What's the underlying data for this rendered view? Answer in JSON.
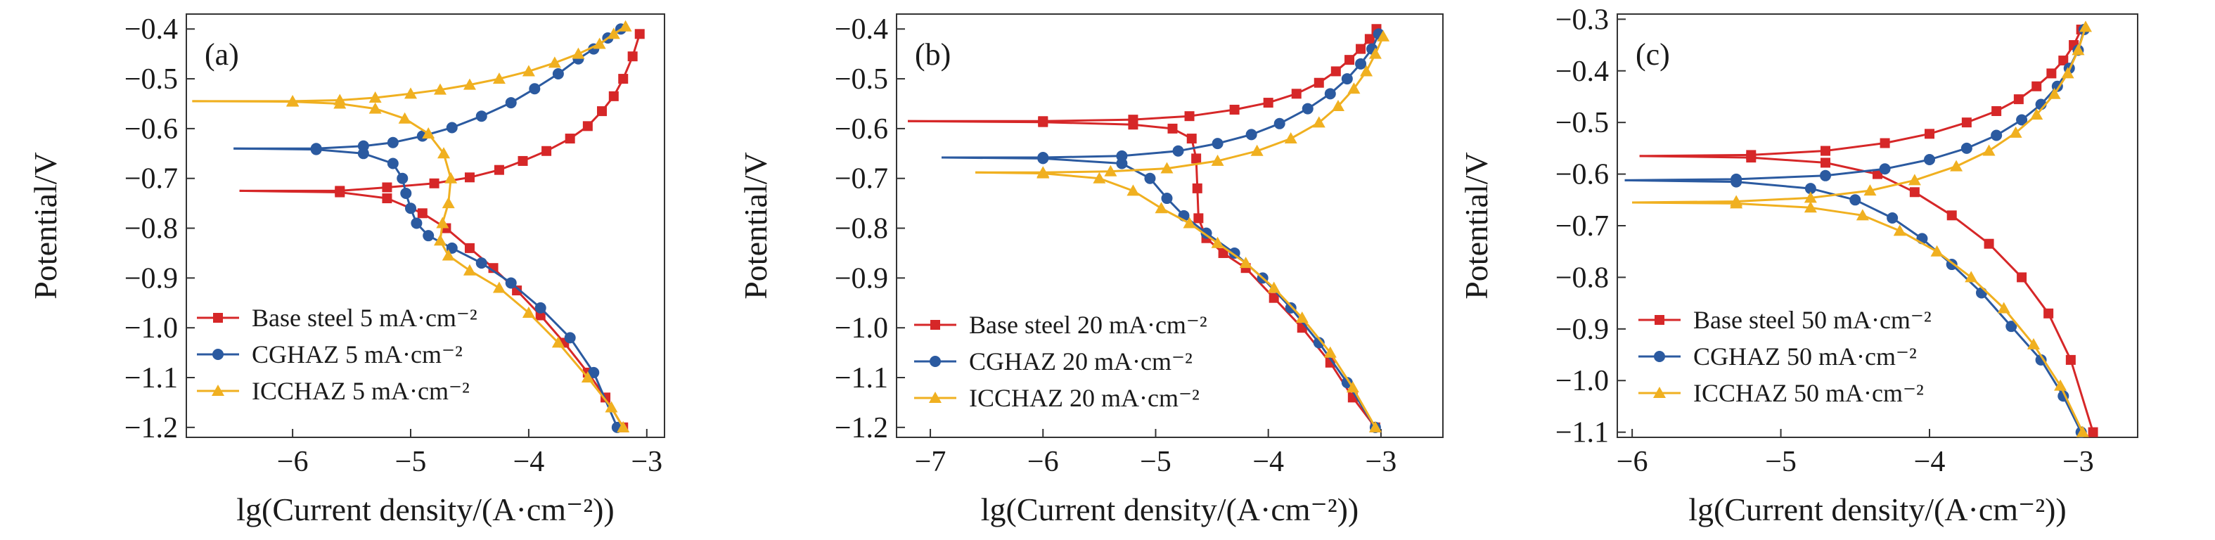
{
  "figure": {
    "panels": [
      {
        "tag": "(a)",
        "xlabel": "lg(Current density/(A·cm⁻²))",
        "ylabel": "Potential/V",
        "legend_placement": "lower-left",
        "xlim": [
          -6.9,
          -2.85
        ],
        "ylim": [
          -1.22,
          -0.37
        ],
        "xticks": [
          -6,
          -5,
          -4,
          -3
        ],
        "yticks": [
          -1.2,
          -1.1,
          -1.0,
          -0.9,
          -0.8,
          -0.7,
          -0.6,
          -0.5,
          -0.4
        ]
      },
      {
        "tag": "(b)",
        "xlabel": "lg(Current density/(A·cm⁻²))",
        "ylabel": "Potential/V",
        "legend_placement": "lower-left",
        "xlim": [
          -7.3,
          -2.45
        ],
        "ylim": [
          -1.22,
          -0.37
        ],
        "xticks": [
          -7,
          -6,
          -5,
          -4,
          -3
        ],
        "yticks": [
          -1.2,
          -1.1,
          -1.0,
          -0.9,
          -0.8,
          -0.7,
          -0.6,
          -0.5,
          -0.4
        ]
      },
      {
        "tag": "(c)",
        "xlabel": "lg(Current density/(A·cm⁻²))",
        "ylabel": "Potential/V",
        "legend_placement": "lower-left",
        "xlim": [
          -6.1,
          -2.6
        ],
        "ylim": [
          -1.11,
          -0.29
        ],
        "xticks": [
          -6,
          -5,
          -4,
          -3
        ],
        "yticks": [
          -1.1,
          -1.0,
          -0.9,
          -0.8,
          -0.7,
          -0.6,
          -0.5,
          -0.4,
          -0.3
        ]
      }
    ]
  },
  "chart_data": [
    {
      "type": "line",
      "panel": "(a)",
      "xlabel": "lg(Current density/(A·cm⁻²))",
      "ylabel": "Potential/V",
      "xlim": [
        -6.9,
        -2.85
      ],
      "ylim": [
        -1.22,
        -0.37
      ],
      "grid": false,
      "legend": "lower-left",
      "series": [
        {
          "name": "Base steel 5 mA·cm⁻²",
          "color": "#d62728",
          "marker": "square",
          "anodic": {
            "x": [
              -6.45,
              -5.6,
              -5.2,
              -4.8,
              -4.5,
              -4.25,
              -4.05,
              -3.85,
              -3.65,
              -3.5,
              -3.38,
              -3.28,
              -3.2,
              -3.12,
              -3.06
            ],
            "y": [
              -0.725,
              -0.725,
              -0.718,
              -0.71,
              -0.698,
              -0.683,
              -0.665,
              -0.645,
              -0.62,
              -0.595,
              -0.565,
              -0.535,
              -0.5,
              -0.455,
              -0.41
            ]
          },
          "cathodic": {
            "x": [
              -6.45,
              -5.6,
              -5.2,
              -4.9,
              -4.7,
              -4.5,
              -4.3,
              -4.1,
              -3.9,
              -3.7,
              -3.5,
              -3.35,
              -3.2
            ],
            "y": [
              -0.725,
              -0.728,
              -0.74,
              -0.77,
              -0.8,
              -0.84,
              -0.88,
              -0.925,
              -0.975,
              -1.03,
              -1.09,
              -1.14,
              -1.2
            ]
          }
        },
        {
          "name": "CGHAZ 5 mA·cm⁻²",
          "color": "#2b5aa0",
          "marker": "circle",
          "anodic": {
            "x": [
              -6.5,
              -5.8,
              -5.4,
              -5.15,
              -4.9,
              -4.65,
              -4.4,
              -4.15,
              -3.95,
              -3.75,
              -3.58,
              -3.45,
              -3.33,
              -3.22
            ],
            "y": [
              -0.64,
              -0.64,
              -0.635,
              -0.628,
              -0.615,
              -0.598,
              -0.575,
              -0.548,
              -0.52,
              -0.49,
              -0.46,
              -0.44,
              -0.418,
              -0.4
            ]
          },
          "cathodic": {
            "x": [
              -6.5,
              -5.8,
              -5.4,
              -5.15,
              -5.07,
              -5.04,
              -5.0,
              -4.95,
              -4.85,
              -4.65,
              -4.4,
              -4.15,
              -3.9,
              -3.65,
              -3.45,
              -3.25
            ],
            "y": [
              -0.64,
              -0.642,
              -0.65,
              -0.67,
              -0.7,
              -0.73,
              -0.76,
              -0.79,
              -0.815,
              -0.84,
              -0.87,
              -0.91,
              -0.96,
              -1.02,
              -1.09,
              -1.2
            ]
          }
        },
        {
          "name": "ICCHAZ 5 mA·cm⁻²",
          "color": "#f0b020",
          "marker": "triangle",
          "anodic": {
            "x": [
              -6.85,
              -6.0,
              -5.6,
              -5.3,
              -5.0,
              -4.75,
              -4.5,
              -4.25,
              -4.0,
              -3.78,
              -3.58,
              -3.4,
              -3.28,
              -3.18
            ],
            "y": [
              -0.545,
              -0.545,
              -0.543,
              -0.538,
              -0.53,
              -0.522,
              -0.512,
              -0.5,
              -0.485,
              -0.468,
              -0.45,
              -0.43,
              -0.41,
              -0.395
            ]
          },
          "cathodic": {
            "x": [
              -6.85,
              -6.0,
              -5.6,
              -5.3,
              -5.05,
              -4.85,
              -4.72,
              -4.66,
              -4.68,
              -4.73,
              -4.75,
              -4.68,
              -4.5,
              -4.25,
              -4.0,
              -3.75,
              -3.5,
              -3.3,
              -3.2
            ],
            "y": [
              -0.545,
              -0.546,
              -0.55,
              -0.56,
              -0.58,
              -0.61,
              -0.65,
              -0.7,
              -0.75,
              -0.79,
              -0.825,
              -0.855,
              -0.885,
              -0.92,
              -0.97,
              -1.03,
              -1.1,
              -1.16,
              -1.2
            ]
          }
        }
      ]
    },
    {
      "type": "line",
      "panel": "(b)",
      "xlabel": "lg(Current density/(A·cm⁻²))",
      "ylabel": "Potential/V",
      "xlim": [
        -7.3,
        -2.45
      ],
      "ylim": [
        -1.22,
        -0.37
      ],
      "grid": false,
      "legend": "lower-left",
      "series": [
        {
          "name": "Base steel 20 mA·cm⁻²",
          "color": "#d62728",
          "marker": "square",
          "anodic": {
            "x": [
              -7.2,
              -6.0,
              -5.2,
              -4.7,
              -4.3,
              -4.0,
              -3.75,
              -3.55,
              -3.4,
              -3.28,
              -3.18,
              -3.1,
              -3.04
            ],
            "y": [
              -0.585,
              -0.585,
              -0.582,
              -0.575,
              -0.562,
              -0.548,
              -0.53,
              -0.508,
              -0.485,
              -0.462,
              -0.44,
              -0.42,
              -0.4
            ]
          },
          "cathodic": {
            "x": [
              -7.2,
              -6.0,
              -5.2,
              -4.85,
              -4.68,
              -4.64,
              -4.63,
              -4.62,
              -4.55,
              -4.4,
              -4.2,
              -3.95,
              -3.7,
              -3.45,
              -3.25,
              -3.05
            ],
            "y": [
              -0.585,
              -0.587,
              -0.592,
              -0.6,
              -0.62,
              -0.66,
              -0.72,
              -0.78,
              -0.82,
              -0.85,
              -0.88,
              -0.94,
              -1.0,
              -1.07,
              -1.14,
              -1.2
            ]
          }
        },
        {
          "name": "CGHAZ 20 mA·cm⁻²",
          "color": "#2b5aa0",
          "marker": "circle",
          "anodic": {
            "x": [
              -6.9,
              -6.0,
              -5.3,
              -4.8,
              -4.45,
              -4.15,
              -3.9,
              -3.65,
              -3.45,
              -3.3,
              -3.18,
              -3.08,
              -3.02
            ],
            "y": [
              -0.658,
              -0.658,
              -0.655,
              -0.645,
              -0.63,
              -0.612,
              -0.59,
              -0.56,
              -0.53,
              -0.5,
              -0.47,
              -0.44,
              -0.41
            ]
          },
          "cathodic": {
            "x": [
              -6.9,
              -6.0,
              -5.3,
              -5.05,
              -4.9,
              -4.75,
              -4.55,
              -4.3,
              -4.05,
              -3.8,
              -3.55,
              -3.3,
              -3.05
            ],
            "y": [
              -0.658,
              -0.66,
              -0.67,
              -0.7,
              -0.74,
              -0.775,
              -0.81,
              -0.85,
              -0.9,
              -0.96,
              -1.03,
              -1.11,
              -1.2
            ]
          }
        },
        {
          "name": "ICCHAZ 20 mA·cm⁻²",
          "color": "#f0b020",
          "marker": "triangle",
          "anodic": {
            "x": [
              -6.6,
              -6.0,
              -5.4,
              -4.9,
              -4.45,
              -4.1,
              -3.8,
              -3.55,
              -3.38,
              -3.24,
              -3.13,
              -3.05,
              -2.98
            ],
            "y": [
              -0.688,
              -0.688,
              -0.686,
              -0.68,
              -0.665,
              -0.645,
              -0.62,
              -0.588,
              -0.555,
              -0.52,
              -0.485,
              -0.45,
              -0.415
            ]
          },
          "cathodic": {
            "x": [
              -6.6,
              -6.0,
              -5.5,
              -5.2,
              -4.95,
              -4.7,
              -4.45,
              -4.2,
              -3.95,
              -3.7,
              -3.45,
              -3.25,
              -3.05
            ],
            "y": [
              -0.688,
              -0.69,
              -0.7,
              -0.725,
              -0.76,
              -0.79,
              -0.83,
              -0.87,
              -0.92,
              -0.98,
              -1.05,
              -1.12,
              -1.2
            ]
          }
        }
      ]
    },
    {
      "type": "line",
      "panel": "(c)",
      "xlabel": "lg(Current density/(A·cm⁻²))",
      "ylabel": "Potential/V",
      "xlim": [
        -6.1,
        -2.6
      ],
      "ylim": [
        -1.11,
        -0.29
      ],
      "grid": false,
      "legend": "lower-left",
      "series": [
        {
          "name": "Base steel 50 mA·cm⁻²",
          "color": "#d62728",
          "marker": "square",
          "anodic": {
            "x": [
              -5.95,
              -5.2,
              -4.7,
              -4.3,
              -4.0,
              -3.75,
              -3.55,
              -3.4,
              -3.28,
              -3.18,
              -3.1,
              -3.03,
              -2.98
            ],
            "y": [
              -0.565,
              -0.563,
              -0.555,
              -0.54,
              -0.522,
              -0.5,
              -0.478,
              -0.455,
              -0.43,
              -0.405,
              -0.38,
              -0.35,
              -0.32
            ]
          },
          "cathodic": {
            "x": [
              -5.95,
              -5.2,
              -4.7,
              -4.35,
              -4.1,
              -3.85,
              -3.6,
              -3.38,
              -3.2,
              -3.05,
              -2.9
            ],
            "y": [
              -0.565,
              -0.568,
              -0.578,
              -0.6,
              -0.635,
              -0.68,
              -0.735,
              -0.8,
              -0.87,
              -0.96,
              -1.1
            ]
          }
        },
        {
          "name": "CGHAZ 50 mA·cm⁻²",
          "color": "#2b5aa0",
          "marker": "circle",
          "anodic": {
            "x": [
              -6.05,
              -5.3,
              -4.7,
              -4.3,
              -4.0,
              -3.75,
              -3.55,
              -3.38,
              -3.25,
              -3.14,
              -3.06,
              -3.0,
              -2.96
            ],
            "y": [
              -0.612,
              -0.61,
              -0.603,
              -0.59,
              -0.572,
              -0.55,
              -0.525,
              -0.495,
              -0.465,
              -0.43,
              -0.395,
              -0.36,
              -0.32
            ]
          },
          "cathodic": {
            "x": [
              -6.05,
              -5.3,
              -4.8,
              -4.5,
              -4.25,
              -4.05,
              -3.85,
              -3.65,
              -3.45,
              -3.25,
              -3.1,
              -2.98
            ],
            "y": [
              -0.612,
              -0.615,
              -0.628,
              -0.65,
              -0.685,
              -0.725,
              -0.775,
              -0.83,
              -0.895,
              -0.96,
              -1.03,
              -1.1
            ]
          }
        },
        {
          "name": "ICCHAZ 50 mA·cm⁻²",
          "color": "#f0b020",
          "marker": "triangle",
          "anodic": {
            "x": [
              -6.0,
              -5.3,
              -4.8,
              -4.4,
              -4.1,
              -3.82,
              -3.6,
              -3.42,
              -3.28,
              -3.16,
              -3.07,
              -3.0,
              -2.95
            ],
            "y": [
              -0.655,
              -0.653,
              -0.646,
              -0.632,
              -0.612,
              -0.585,
              -0.555,
              -0.52,
              -0.485,
              -0.445,
              -0.405,
              -0.36,
              -0.315
            ]
          },
          "cathodic": {
            "x": [
              -6.0,
              -5.3,
              -4.8,
              -4.45,
              -4.2,
              -3.95,
              -3.72,
              -3.5,
              -3.3,
              -3.12,
              -2.97
            ],
            "y": [
              -0.655,
              -0.657,
              -0.665,
              -0.68,
              -0.71,
              -0.75,
              -0.8,
              -0.86,
              -0.93,
              -1.01,
              -1.1
            ]
          }
        }
      ]
    }
  ]
}
